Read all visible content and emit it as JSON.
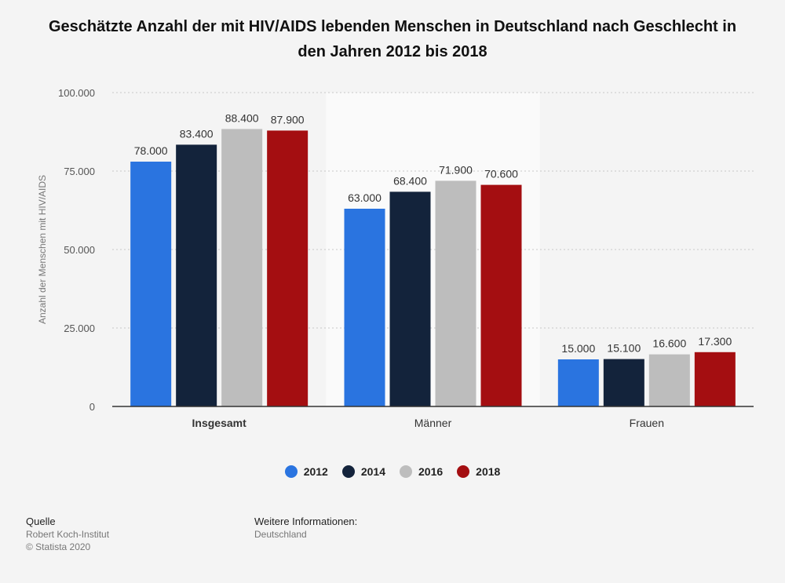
{
  "title": "Geschätzte Anzahl der mit HIV/AIDS lebenden Menschen in Deutschland nach Geschlecht in den Jahren 2012 bis 2018",
  "chart_data": {
    "type": "bar",
    "categories": [
      "Insgesamt",
      "Männer",
      "Frauen"
    ],
    "series": [
      {
        "name": "2012",
        "color": "#2a74e0",
        "values": [
          78000,
          63000,
          15000
        ],
        "labels": [
          "78.000",
          "63.000",
          "15.000"
        ]
      },
      {
        "name": "2014",
        "color": "#13233b",
        "values": [
          83400,
          68400,
          15100
        ],
        "labels": [
          "83.400",
          "68.400",
          "15.100"
        ]
      },
      {
        "name": "2016",
        "color": "#bdbdbd",
        "values": [
          88400,
          71900,
          16600
        ],
        "labels": [
          "88.400",
          "71.900",
          "16.600"
        ]
      },
      {
        "name": "2018",
        "color": "#a40e11",
        "values": [
          87900,
          70600,
          17300
        ],
        "labels": [
          "87.900",
          "70.600",
          "17.300"
        ]
      }
    ],
    "ylabel": "Anzahl der Menschen mit HIV/AIDS",
    "ylim": [
      0,
      100000
    ],
    "yticks": [
      0,
      25000,
      50000,
      75000,
      100000
    ],
    "ytick_labels": [
      "0",
      "25.000",
      "50.000",
      "75.000",
      "100.000"
    ],
    "grid": true,
    "legend_position": "bottom",
    "highlight_category": "Männer",
    "bold_category": "Insgesamt"
  },
  "footer": {
    "source_heading": "Quelle",
    "source_lines": [
      "Robert Koch-Institut",
      "© Statista 2020"
    ],
    "info_heading": "Weitere Informationen:",
    "info_lines": [
      "Deutschland"
    ]
  }
}
